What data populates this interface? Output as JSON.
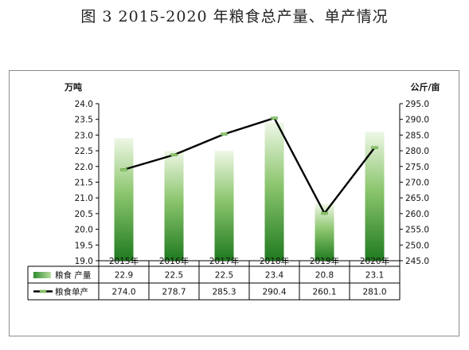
{
  "title": "图 3   2015-2020 年粮食总产量、单产情况",
  "chart_data": {
    "type": "bar",
    "categories": [
      "2015年",
      "2016年",
      "2017年",
      "2018年",
      "2019年",
      "2020年"
    ],
    "left_axis": {
      "label": "万吨",
      "ylim": [
        19.0,
        24.0
      ],
      "ticks": [
        "19.0",
        "19.5",
        "20.0",
        "20.5",
        "21.0",
        "21.5",
        "22.0",
        "22.5",
        "23.0",
        "23.5",
        "24.0"
      ]
    },
    "right_axis": {
      "label": "公斤/亩",
      "ylim": [
        245.0,
        295.0
      ],
      "ticks": [
        "245.0",
        "250.0",
        "255.0",
        "260.0",
        "265.0",
        "270.0",
        "275.0",
        "280.0",
        "285.0",
        "290.0",
        "295.0"
      ]
    },
    "series": [
      {
        "name": "粮食 产量",
        "type": "bar",
        "axis": "left",
        "color": "#2e8b2e",
        "values": [
          22.9,
          22.5,
          22.5,
          23.4,
          20.8,
          23.1
        ],
        "labels": [
          "22.9",
          "22.5",
          "22.5",
          "23.4",
          "20.8",
          "23.1"
        ]
      },
      {
        "name": "粮食单产",
        "type": "line",
        "axis": "right",
        "color": "#000000",
        "values": [
          274.0,
          278.7,
          285.3,
          290.4,
          260.1,
          281.0
        ],
        "labels": [
          "274.0",
          "278.7",
          "285.3",
          "290.4",
          "260.1",
          "281.0"
        ]
      }
    ],
    "legend": "data-table",
    "grid": false
  }
}
